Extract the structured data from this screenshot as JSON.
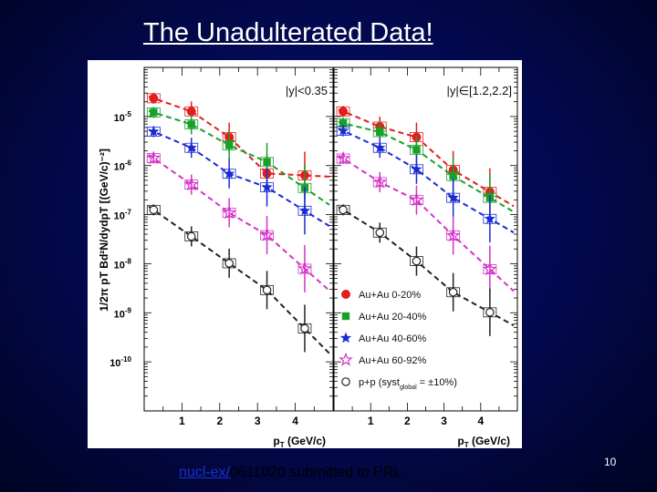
{
  "slide": {
    "title": "The Unadulterated Data!",
    "footer_link": "nucl-ex/",
    "footer_text": "0611020 submitted to PRL",
    "page_number": "10"
  },
  "colors": {
    "au0_20": "#e21d1d",
    "au20_40": "#17a12a",
    "au40_60": "#1b2bd4",
    "au60_92": "#d433c8",
    "pp": "#222222"
  },
  "chart_data": {
    "type": "scatter",
    "ylabel": "1/2π pT Bd²N/dydpT [(GeV/c)⁻²]",
    "ylim": [
      1e-11,
      0.0001
    ],
    "yscale": "log",
    "y_ticks": [
      {
        "label": "10",
        "sup": "-5",
        "value": 1e-05
      },
      {
        "label": "10",
        "sup": "-6",
        "value": 1e-06
      },
      {
        "label": "10",
        "sup": "-7",
        "value": 1e-07
      },
      {
        "label": "10",
        "sup": "-8",
        "value": 1e-08
      },
      {
        "label": "10",
        "sup": "-9",
        "value": 1e-09
      },
      {
        "label": "10",
        "sup": "-10",
        "value": 1e-10
      }
    ],
    "panels": [
      {
        "rapidity_label": "|y|<0.35",
        "xlabel": "pT (GeV/c)",
        "xlim": [
          0,
          5
        ],
        "x_ticks": [
          "1",
          "2",
          "3",
          "4"
        ],
        "series": [
          {
            "name": "Au+Au 0-20%",
            "key": "au0_20",
            "marker": "circle-filled",
            "x": [
              0.25,
              1.25,
              2.25,
              3.25,
              4.25
            ],
            "y": [
              2.35e-05,
              1.27e-05,
              3.8e-06,
              6.9e-07,
              6.3e-07
            ]
          },
          {
            "name": "Au+Au 20-40%",
            "key": "au20_40",
            "marker": "square-filled",
            "x": [
              0.25,
              1.25,
              2.25,
              3.25,
              4.25
            ],
            "y": [
              1.21e-05,
              6.9e-06,
              2.6e-06,
              1.18e-06,
              3.5e-07
            ]
          },
          {
            "name": "Au+Au 40-60%",
            "key": "au40_60",
            "marker": "star-filled",
            "x": [
              0.25,
              1.25,
              2.25,
              3.25,
              4.25
            ],
            "y": [
              4.9e-06,
              2.3e-06,
              6.8e-07,
              3.6e-07,
              1.2e-07
            ]
          },
          {
            "name": "Au+Au 60-92%",
            "key": "au60_92",
            "marker": "star-open",
            "x": [
              0.25,
              1.25,
              2.25,
              3.25,
              4.25
            ],
            "y": [
              1.42e-06,
              4.1e-07,
              1.09e-07,
              3.81e-08,
              7.9e-09
            ]
          },
          {
            "name": "p+p (syst global = ±10%)",
            "key": "pp",
            "marker": "circle-open",
            "x": [
              0.25,
              1.25,
              2.25,
              3.25,
              4.25
            ],
            "y": [
              1.25e-07,
              3.6e-08,
              1.02e-08,
              2.9e-09,
              4.8e-10
            ]
          }
        ]
      },
      {
        "rapidity_label": "|y|∈[1.2,2.2]",
        "xlabel": "pT (GeV/c)",
        "xlim": [
          0,
          5
        ],
        "x_ticks": [
          "1",
          "2",
          "3",
          "4"
        ],
        "series": [
          {
            "name": "Au+Au 0-20%",
            "key": "au0_20",
            "marker": "circle-filled",
            "x": [
              0.25,
              1.25,
              2.25,
              3.25,
              4.25
            ],
            "y": [
              1.27e-05,
              6.2e-06,
              3.8e-06,
              8.1e-07,
              2.9e-07
            ]
          },
          {
            "name": "Au+Au 20-40%",
            "key": "au20_40",
            "marker": "square-filled",
            "x": [
              0.25,
              1.25,
              2.25,
              3.25,
              4.25
            ],
            "y": [
              7.3e-06,
              4.8e-06,
              2.1e-06,
              6.1e-07,
              2.2e-07
            ]
          },
          {
            "name": "Au+Au 40-60%",
            "key": "au40_60",
            "marker": "star-filled",
            "x": [
              0.25,
              1.25,
              2.25,
              3.25,
              4.25
            ],
            "y": [
              5.1e-06,
              2.3e-06,
              8.4e-07,
              2.2e-07,
              8.2e-08
            ]
          },
          {
            "name": "Au+Au 60-92%",
            "key": "au60_92",
            "marker": "star-open",
            "x": [
              0.25,
              1.25,
              2.25,
              3.25,
              4.25
            ],
            "y": [
              1.39e-06,
              4.6e-07,
              1.98e-07,
              3.75e-08,
              7.7e-09
            ]
          },
          {
            "name": "p+p (syst global = ±10%)",
            "key": "pp",
            "marker": "circle-open",
            "x": [
              0.25,
              1.25,
              2.25,
              3.25,
              4.25
            ],
            "y": [
              1.25e-07,
              4.3e-08,
              1.13e-08,
              2.62e-09,
              1.02e-09
            ]
          }
        ]
      }
    ],
    "legend": [
      {
        "label": "Au+Au 0-20%",
        "key": "au0_20",
        "marker": "circle-filled"
      },
      {
        "label": "Au+Au 20-40%",
        "key": "au20_40",
        "marker": "square-filled"
      },
      {
        "label": "Au+Au 40-60%",
        "key": "au40_60",
        "marker": "star-filled"
      },
      {
        "label": "Au+Au 60-92%",
        "key": "au60_92",
        "marker": "star-open"
      },
      {
        "label": "p+p (syst",
        "sub": "global",
        "suffix": " = ±10%)",
        "key": "pp",
        "marker": "circle-open"
      }
    ]
  }
}
